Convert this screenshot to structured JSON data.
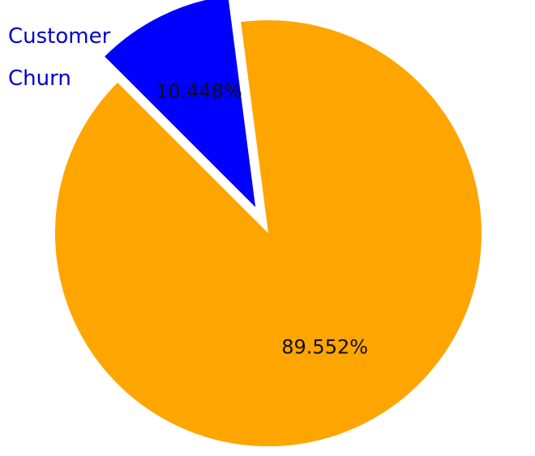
{
  "chart_data": {
    "type": "pie",
    "title": "",
    "slices": [
      {
        "label": "Customer Churn",
        "value": 10.448,
        "display": "10.448%",
        "color": "#0000ff",
        "exploded": true
      },
      {
        "label": "",
        "value": 89.552,
        "display": "89.552%",
        "color": "#ffa500",
        "exploded": false
      }
    ],
    "label_lines": [
      "Customer",
      "Churn"
    ],
    "start_angle_deg": 135,
    "direction": "clockwise"
  }
}
